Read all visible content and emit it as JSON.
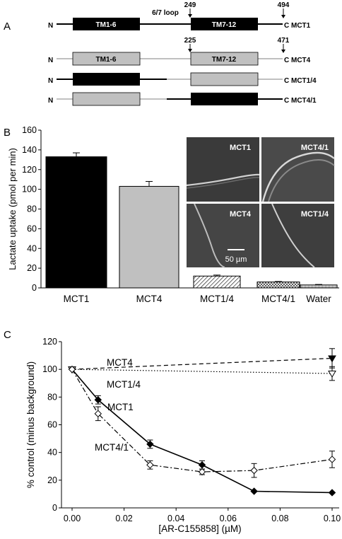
{
  "panels": {
    "a": "A",
    "b": "B",
    "c": "C"
  },
  "panel_a": {
    "n_label": "N",
    "c_label": "C",
    "loop_label": "6/7 loop",
    "tm1_label": "TM1-6",
    "tm2_label": "TM7-12",
    "mct1_pos1": "249",
    "mct1_pos2": "494",
    "mct4_pos1": "225",
    "mct4_pos2": "471",
    "constructs": [
      {
        "name": "MCT1",
        "first_half": "MCT1",
        "second_half": "MCT1"
      },
      {
        "name": "MCT4",
        "first_half": "MCT4",
        "second_half": "MCT4"
      },
      {
        "name": "MCT1/4",
        "first_half": "MCT1",
        "second_half": "MCT4"
      },
      {
        "name": "MCT4/1",
        "first_half": "MCT4",
        "second_half": "MCT1"
      }
    ],
    "colors": {
      "MCT1": "#000000",
      "MCT4": "#c0c0c0"
    }
  },
  "panel_b_images": {
    "labels": [
      "MCT1",
      "MCT4/1",
      "MCT4",
      "MCT1/4"
    ],
    "scale_label": "50 µm"
  },
  "chart_data": [
    {
      "type": "bar",
      "ylabel": "Lactate uptake (pmol per min)",
      "xlabel": "",
      "ylim": [
        0,
        160
      ],
      "yticks": [
        0,
        20,
        40,
        60,
        80,
        100,
        120,
        140,
        160
      ],
      "categories": [
        "MCT1",
        "MCT4",
        "MCT1/4",
        "MCT4/1",
        "Water"
      ],
      "values": [
        133,
        103,
        12,
        6,
        3
      ],
      "errors": [
        4,
        5,
        1,
        0.5,
        0.5
      ],
      "fills": [
        "solid-black",
        "solid-gray",
        "hatch",
        "crosshatch",
        "dense-dots"
      ]
    },
    {
      "type": "line",
      "xlabel": "[AR-C155858] (µM)",
      "ylabel": "% control (minus background)",
      "xlim": [
        0,
        0.1
      ],
      "ylim": [
        0,
        120
      ],
      "xticks": [
        "0.00",
        "0.02",
        "0.04",
        "0.06",
        "0.08",
        "0.10"
      ],
      "yticks": [
        0,
        20,
        40,
        60,
        80,
        100,
        120
      ],
      "series": [
        {
          "name": "MCT4",
          "x": [
            0,
            0.1
          ],
          "y": [
            100,
            108
          ],
          "err": [
            0,
            7
          ],
          "marker": "filled-triangle-down",
          "line": "dashed"
        },
        {
          "name": "MCT1/4",
          "x": [
            0,
            0.1
          ],
          "y": [
            100,
            97
          ],
          "err": [
            0,
            5
          ],
          "marker": "open-triangle-down",
          "line": "dotted"
        },
        {
          "name": "MCT1",
          "x": [
            0,
            0.01,
            0.03,
            0.05,
            0.07,
            0.1
          ],
          "y": [
            100,
            78,
            46,
            31,
            12,
            11
          ],
          "err": [
            0,
            3,
            3,
            3,
            0,
            0
          ],
          "marker": "filled-diamond",
          "line": "solid"
        },
        {
          "name": "MCT4/1",
          "x": [
            0,
            0.01,
            0.03,
            0.05,
            0.07,
            0.1
          ],
          "y": [
            100,
            68,
            31,
            26,
            27,
            35
          ],
          "err": [
            0,
            5,
            3,
            2,
            5,
            6
          ],
          "marker": "open-diamond",
          "line": "dash-dot"
        }
      ]
    }
  ]
}
